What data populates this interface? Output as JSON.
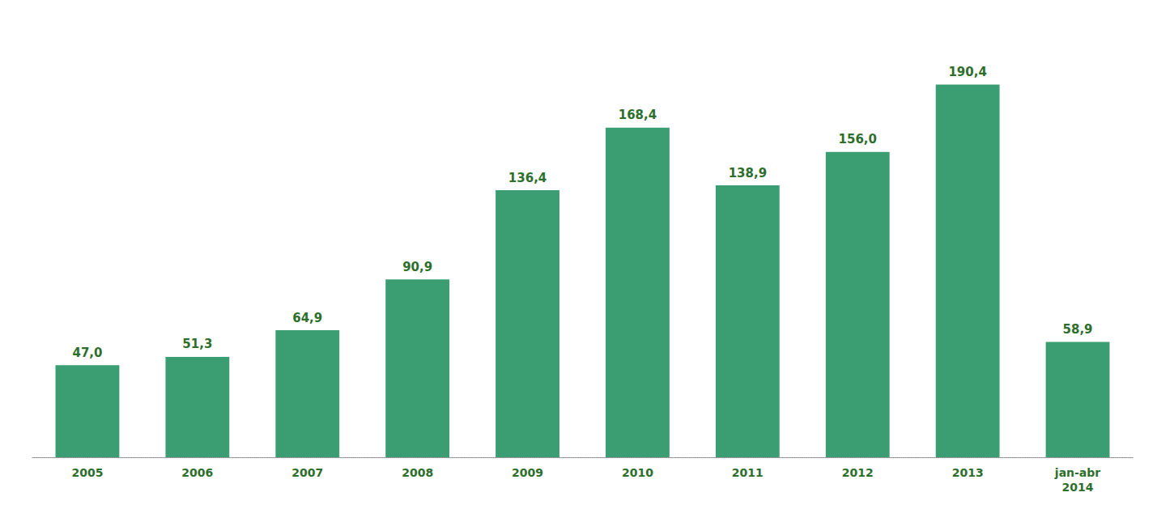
{
  "chart_data": {
    "type": "bar",
    "categories": [
      "2005",
      "2006",
      "2007",
      "2008",
      "2009",
      "2010",
      "2011",
      "2012",
      "2013",
      "jan-abr\n2014"
    ],
    "values": [
      47.0,
      51.3,
      64.9,
      90.9,
      136.4,
      168.4,
      138.9,
      156.0,
      190.4,
      58.9
    ],
    "value_labels": [
      "47,0",
      "51,3",
      "64,9",
      "90,9",
      "136,4",
      "168,4",
      "138,9",
      "156,0",
      "190,4",
      "58,9"
    ],
    "data_labels": true,
    "color": "#3a9e72",
    "ylim": [
      0,
      215
    ],
    "grid": false,
    "tick_labels": "x"
  }
}
